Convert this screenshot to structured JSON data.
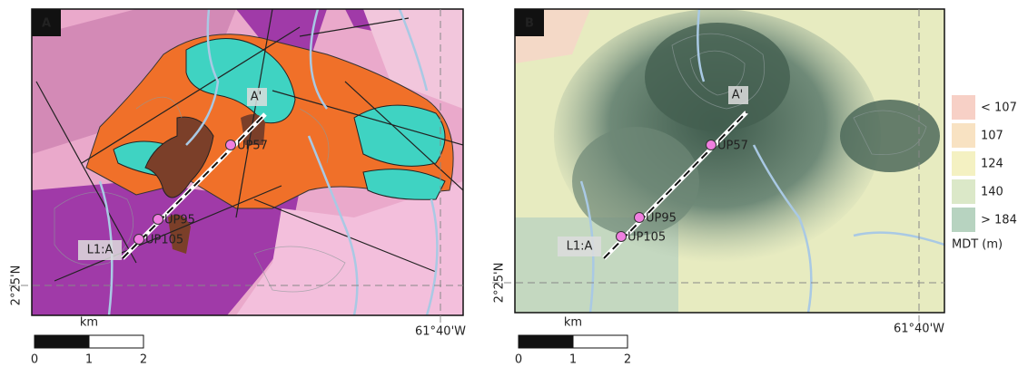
{
  "panels": [
    {
      "label": "A",
      "section_end": "A'",
      "section_start": "L1:A",
      "points": [
        "UP57",
        "UP95",
        "UP105"
      ],
      "lat_label": "2°25'N",
      "lon_label": "61°40'W",
      "scale": {
        "unit": "km",
        "ticks": [
          "0",
          "1",
          "2"
        ]
      }
    },
    {
      "label": "B",
      "section_end": "A'",
      "section_start": "L1:A",
      "points": [
        "UP57",
        "UP95",
        "UP105"
      ],
      "lat_label": "2°25'N",
      "lon_label": "61°40'W",
      "scale": {
        "unit": "km",
        "ticks": [
          "0",
          "1",
          "2"
        ]
      }
    }
  ],
  "legend": {
    "title": "MDT (m)",
    "items": [
      {
        "label": "< 107",
        "color": "#f7d0c6"
      },
      {
        "label": "107",
        "color": "#f8e2c2"
      },
      {
        "label": "124",
        "color": "#f4f1c2"
      },
      {
        "label": "140",
        "color": "#dbe8c8"
      },
      {
        "label": "> 184",
        "color": "#b7d3c0"
      }
    ]
  }
}
